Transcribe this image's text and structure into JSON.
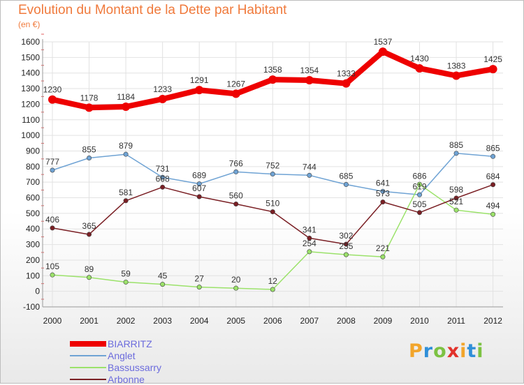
{
  "title": "Evolution du Montant de la Dette par Habitant",
  "subtitle": "(en €)",
  "logo": {
    "text": "Proxiti",
    "colors": [
      "#f2a52b",
      "#2f8fd8",
      "#7cc242",
      "#e2322b",
      "#f2a52b",
      "#2f8fd8",
      "#7cc242"
    ]
  },
  "chart_data": {
    "type": "line",
    "title": "Evolution du Montant de la Dette par Habitant",
    "subtitle": "(en €)",
    "x": [
      "2000",
      "2001",
      "2002",
      "2003",
      "2004",
      "2005",
      "2006",
      "2007",
      "2008",
      "2009",
      "2010",
      "2011",
      "2012"
    ],
    "ylim": [
      -100,
      1600
    ],
    "yticks": [
      -100,
      0,
      100,
      200,
      300,
      400,
      500,
      600,
      700,
      800,
      900,
      1000,
      1100,
      1200,
      1300,
      1400,
      1500,
      1600
    ],
    "grid": true,
    "legend": "bottom-left",
    "series": [
      {
        "name": "BIARRITZ",
        "color": "#ee0000",
        "width": 8,
        "values": [
          1230,
          1178,
          1184,
          1233,
          1291,
          1267,
          1358,
          1354,
          1333,
          1537,
          1430,
          1383,
          1425
        ]
      },
      {
        "name": "Anglet",
        "color": "#6fa3d4",
        "width": 1.5,
        "values": [
          777,
          855,
          879,
          731,
          689,
          766,
          752,
          744,
          685,
          641,
          619,
          885,
          865
        ]
      },
      {
        "name": "Bassussarry",
        "color": "#9be26a",
        "width": 1.5,
        "values": [
          105,
          89,
          59,
          45,
          27,
          20,
          12,
          254,
          235,
          221,
          686,
          521,
          494
        ]
      },
      {
        "name": "Arbonne",
        "color": "#7a1f24",
        "width": 1.5,
        "values": [
          406,
          365,
          581,
          668,
          607,
          560,
          510,
          341,
          302,
          573,
          505,
          598,
          684
        ]
      }
    ]
  }
}
